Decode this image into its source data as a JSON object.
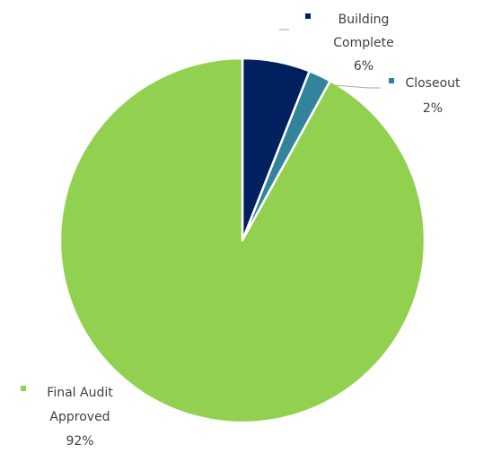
{
  "colors": {
    "background": "#ffffff",
    "label_text": "#404040",
    "leader_line": "#a6a6a6",
    "slice_border": "#ffffff"
  },
  "chart_data": {
    "type": "pie",
    "start_angle_deg": 0,
    "direction": "clockwise",
    "legend": "none",
    "slices": [
      {
        "key": "building-complete",
        "label_lines": [
          "Building",
          "Complete"
        ],
        "pct_label": "6%",
        "value": 6,
        "color": "#002060"
      },
      {
        "key": "closeout",
        "label_lines": [
          "Closeout"
        ],
        "pct_label": "2%",
        "value": 2,
        "color": "#31849b"
      },
      {
        "key": "final-audit-approved",
        "label_lines": [
          "Final Audit",
          "Approved"
        ],
        "pct_label": "92%",
        "value": 92,
        "color": "#92d050"
      }
    ]
  }
}
